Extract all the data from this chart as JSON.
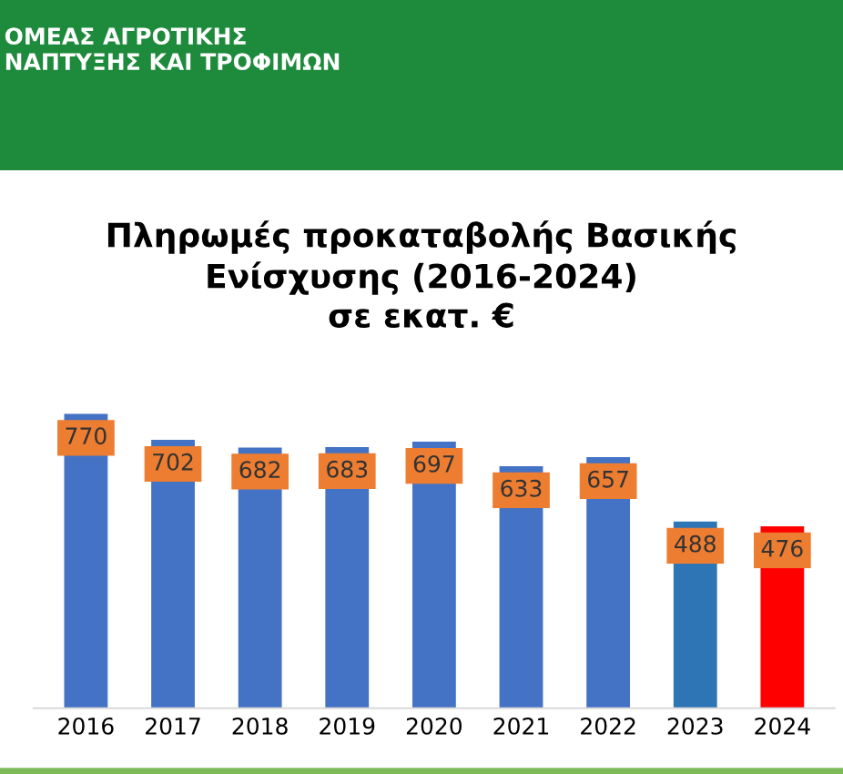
{
  "chart_data": {
    "type": "bar",
    "title": "Πληρωμές προκαταβολής Βασικής\nΕνίσχυσης (2016-2024)\nσε εκατ. €",
    "annotations": [
      "ΟΜΕΑΣ ΑΓΡΟΤΙΚΗΣ\nΝΑΠΤΥΞΗΣ ΚΑΙ ΤΡΟΦΙΜΩΝ"
    ],
    "categories": [
      "2016",
      "2017",
      "2018",
      "2019",
      "2020",
      "2021",
      "2022",
      "2023",
      "2024"
    ],
    "values": [
      770,
      702,
      682,
      683,
      697,
      633,
      657,
      488,
      476
    ],
    "colors": [
      "#4472c4",
      "#4472c4",
      "#4472c4",
      "#4472c4",
      "#4472c4",
      "#4472c4",
      "#4472c4",
      "#2e75b6",
      "#ff0000"
    ],
    "tick_labels": "x",
    "data_labels": true,
    "grid": false,
    "legend": false
  }
}
